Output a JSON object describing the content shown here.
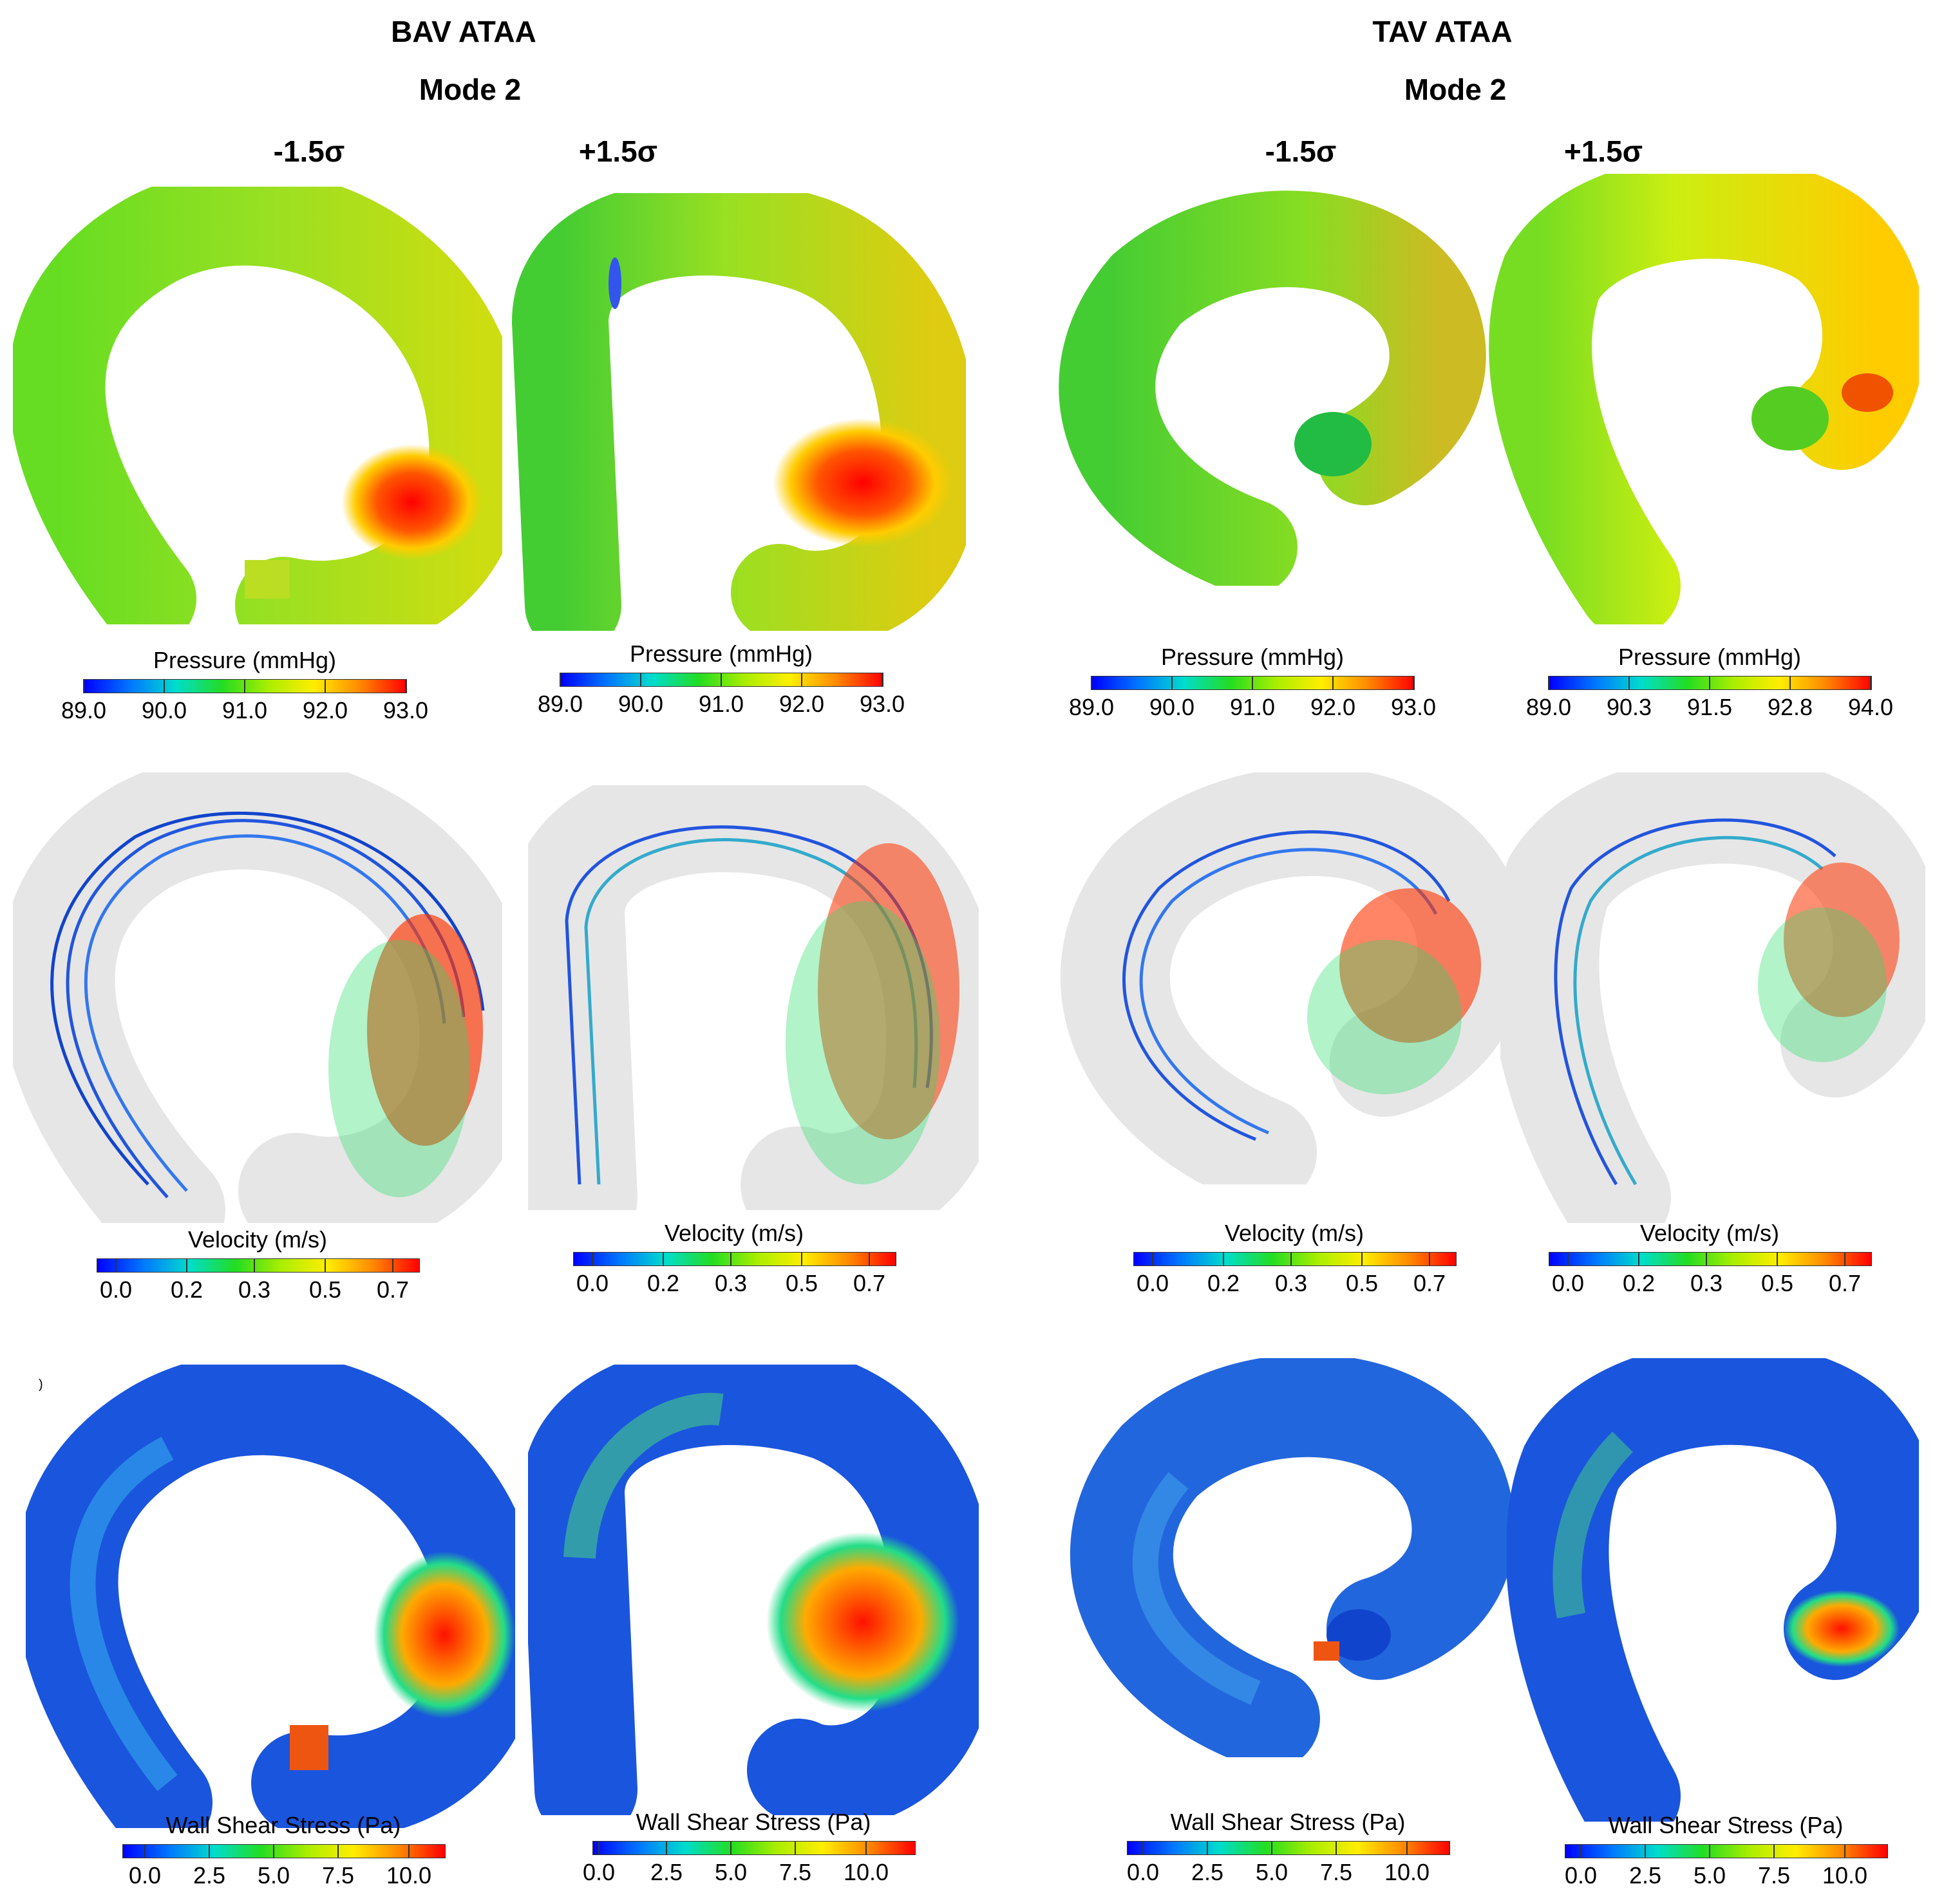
{
  "groups": [
    {
      "title": "BAV ATAA",
      "mode": "Mode 2"
    },
    {
      "title": "TAV ATAA",
      "mode": "Mode 2"
    }
  ],
  "sigma_labels": [
    "-1.5σ",
    "+1.5σ",
    "-1.5σ",
    "+1.5σ"
  ],
  "stray_mark": ")",
  "colormap": {
    "stops": [
      "#0000ff",
      "#0077ff",
      "#00ddcc",
      "#22dd22",
      "#aaee00",
      "#ffee00",
      "#ff8800",
      "#ff0000"
    ]
  },
  "pressure_bars": [
    {
      "title": "Pressure (mmHg)",
      "ticks": [
        "89.0",
        "90.0",
        "91.0",
        "92.0",
        "93.0"
      ]
    },
    {
      "title": "Pressure (mmHg)",
      "ticks": [
        "89.0",
        "90.0",
        "91.0",
        "92.0",
        "93.0"
      ]
    },
    {
      "title": "Pressure (mmHg)",
      "ticks": [
        "89.0",
        "90.0",
        "91.0",
        "92.0",
        "93.0"
      ]
    },
    {
      "title": "Pressure (mmHg)",
      "ticks": [
        "89.0",
        "90.3",
        "91.5",
        "92.8",
        "94.0"
      ]
    }
  ],
  "velocity_bars": [
    {
      "title": "Velocity (m/s)",
      "ticks": [
        "0.0",
        "0.2",
        "0.3",
        "0.5",
        "0.7"
      ]
    },
    {
      "title": "Velocity (m/s)",
      "ticks": [
        "0.0",
        "0.2",
        "0.3",
        "0.5",
        "0.7"
      ]
    },
    {
      "title": "Velocity (m/s)",
      "ticks": [
        "0.0",
        "0.2",
        "0.3",
        "0.5",
        "0.7"
      ]
    },
    {
      "title": "Velocity (m/s)",
      "ticks": [
        "0.0",
        "0.2",
        "0.3",
        "0.5",
        "0.7"
      ]
    }
  ],
  "wss_bars": [
    {
      "title": "Wall Shear Stress (Pa)",
      "ticks": [
        "0.0",
        "2.5",
        "5.0",
        "7.5",
        "10.0"
      ]
    },
    {
      "title": "Wall Shear Stress (Pa)",
      "ticks": [
        "0.0",
        "2.5",
        "5.0",
        "7.5",
        "10.0"
      ]
    },
    {
      "title": "Wall Shear Stress (Pa)",
      "ticks": [
        "0.0",
        "2.5",
        "5.0",
        "7.5",
        "10.0"
      ]
    },
    {
      "title": "Wall Shear Stress (Pa)",
      "ticks": [
        "0.0",
        "2.5",
        "5.0",
        "7.5",
        "10.0"
      ]
    }
  ]
}
